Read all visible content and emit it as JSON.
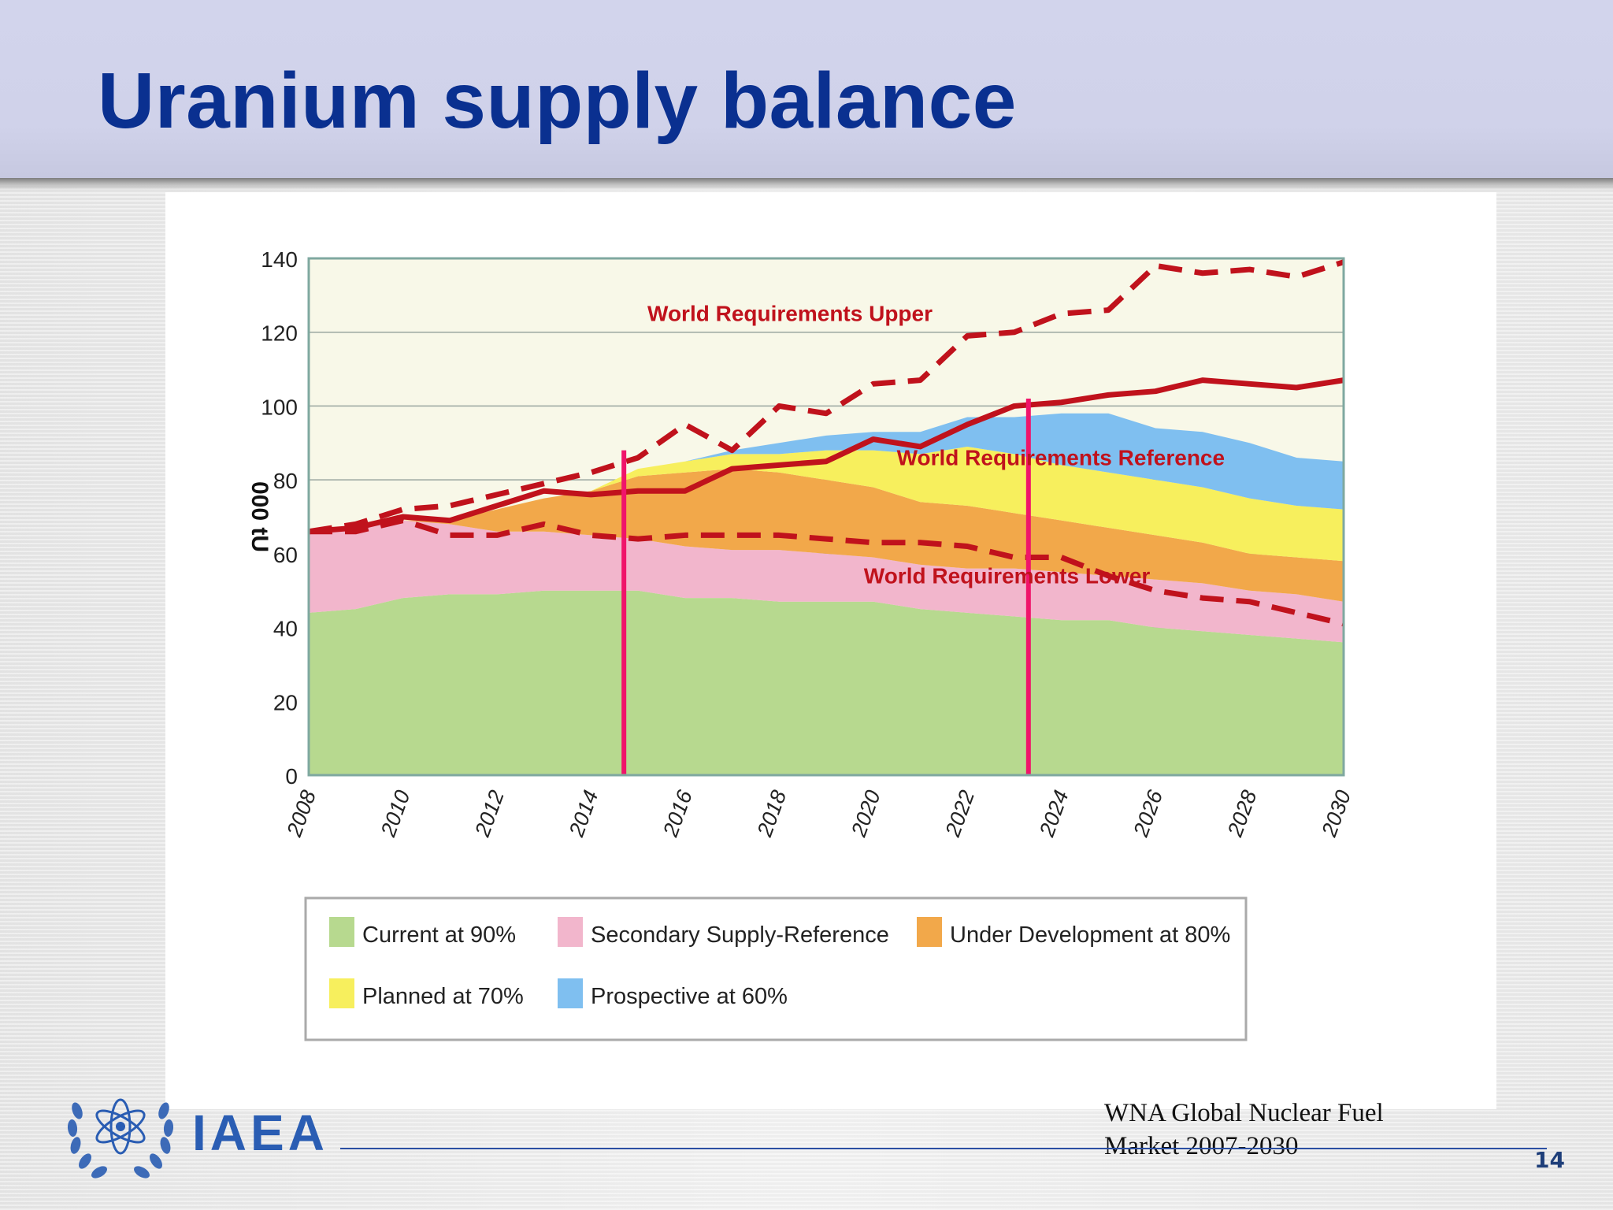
{
  "slide": {
    "title": "Uranium supply balance",
    "source_line1": "WNA Global Nuclear Fuel",
    "source_line2": "Market 2007-2030",
    "page_number": "14",
    "logo_text": "IAEA"
  },
  "colors": {
    "title": "#0a3090",
    "current": "#b7d98f",
    "secondary": "#f2b6cc",
    "under_development": "#f2a84a",
    "planned": "#f7ef5d",
    "prospective": "#7fbff0",
    "requirements": "#c0121c",
    "marker": "#f0146a",
    "plot_bg": "#f8f8e8",
    "logo": "#2a5db3"
  },
  "chart_data": {
    "type": "area",
    "title": "",
    "xlabel": "",
    "ylabel": "000 tU",
    "xlim": [
      2008,
      2030
    ],
    "ylim": [
      0,
      140
    ],
    "yticks": [
      0,
      20,
      40,
      60,
      80,
      100,
      120,
      140
    ],
    "xticks": [
      "2008",
      "2010",
      "2012",
      "2014",
      "2016",
      "2018",
      "2020",
      "2022",
      "2024",
      "2026",
      "2028",
      "2030"
    ],
    "x": [
      2008,
      2009,
      2010,
      2011,
      2012,
      2013,
      2014,
      2015,
      2016,
      2017,
      2018,
      2019,
      2020,
      2021,
      2022,
      2023,
      2024,
      2025,
      2026,
      2027,
      2028,
      2029,
      2030
    ],
    "stacked_series": [
      {
        "name": "Current at 90%",
        "values": [
          44,
          45,
          48,
          49,
          49,
          50,
          50,
          50,
          48,
          48,
          47,
          47,
          47,
          45,
          44,
          43,
          42,
          42,
          40,
          39,
          38,
          37,
          36
        ]
      },
      {
        "name": "Secondary Supply-Reference",
        "values": [
          22,
          22,
          21,
          19,
          17,
          16,
          15,
          14,
          14,
          13,
          14,
          13,
          12,
          12,
          12,
          13,
          13,
          12,
          13,
          13,
          12,
          12,
          11
        ]
      },
      {
        "name": "Under Development at 80%",
        "values": [
          0,
          0,
          0,
          1,
          6,
          9,
          12,
          17,
          20,
          22,
          21,
          20,
          19,
          17,
          17,
          15,
          14,
          13,
          12,
          11,
          10,
          10,
          11
        ]
      },
      {
        "name": "Planned at 70%",
        "values": [
          0,
          0,
          0,
          0,
          0,
          0,
          0,
          2,
          3,
          4,
          5,
          8,
          10,
          13,
          16,
          16,
          15,
          15,
          15,
          15,
          15,
          14,
          14
        ]
      },
      {
        "name": "Prospective at 60%",
        "values": [
          0,
          0,
          0,
          0,
          0,
          0,
          0,
          0,
          0,
          1,
          3,
          4,
          5,
          6,
          8,
          10,
          14,
          16,
          14,
          15,
          15,
          13,
          13
        ]
      }
    ],
    "line_series": [
      {
        "name": "World Requirements Upper",
        "style": "dashed",
        "values": [
          66,
          68,
          72,
          73,
          76,
          79,
          82,
          86,
          95,
          88,
          100,
          98,
          106,
          107,
          119,
          120,
          125,
          126,
          138,
          136,
          137,
          135,
          139
        ]
      },
      {
        "name": "World Requirements Reference",
        "style": "solid",
        "values": [
          66,
          67,
          70,
          69,
          73,
          77,
          76,
          77,
          77,
          83,
          84,
          85,
          91,
          89,
          95,
          100,
          101,
          103,
          104,
          107,
          106,
          105,
          107
        ]
      },
      {
        "name": "World Requirements Lower",
        "style": "dashed",
        "values": [
          66,
          66,
          69,
          65,
          65,
          68,
          65,
          64,
          65,
          65,
          65,
          64,
          63,
          63,
          62,
          59,
          59,
          54,
          50,
          48,
          47,
          44,
          41
        ]
      }
    ],
    "line_labels": [
      "World Requirements Upper",
      "World Requirements Reference",
      "World Requirements Lower"
    ],
    "vertical_markers": [
      {
        "x": 2014.7
      },
      {
        "x": 2023.3
      }
    ],
    "grid": true,
    "legend_position": "bottom",
    "legend": [
      "Current at 90%",
      "Secondary Supply-Reference",
      "Under Development at 80%",
      "Planned at 70%",
      "Prospective at 60%"
    ]
  }
}
